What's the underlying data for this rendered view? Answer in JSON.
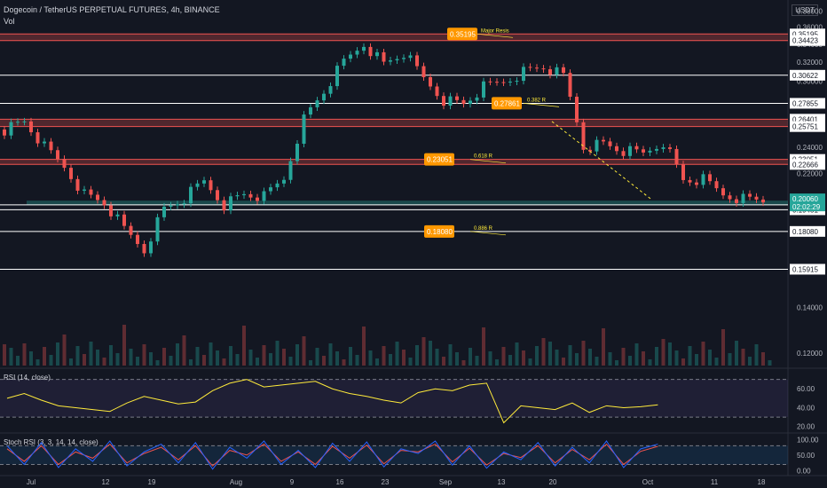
{
  "header": {
    "symbol": "Dogecoin / TetherUS PERPETUAL FUTURES, 4h, BINANCE",
    "volume_label": "Vol",
    "currency": "USDT"
  },
  "colors": {
    "background": "#131722",
    "candle_up": "#26a69a",
    "candle_down": "#ef5350",
    "level_line": "#ffffff",
    "resistance_line": "#ef5350",
    "support_zone": "#26a69a",
    "fib_tag": "#ff9800",
    "fib_text": "#ffeb3b",
    "rsi_line": "#ffeb3b",
    "stoch_k": "#2962ff",
    "stoch_d": "#ef5350",
    "current_price_tag": "#26a69a"
  },
  "chart_data": [
    {
      "type": "candlestick",
      "title": "Dogecoin / TetherUS PERPETUAL FUTURES, 4h, BINANCE",
      "x_labels": [
        "Jul",
        "12",
        "19",
        "Aug",
        "9",
        "16",
        "23",
        "Sep",
        "13",
        "20",
        "Oct",
        "11",
        "18"
      ],
      "y_scale": "log",
      "ylim": [
        0.115,
        0.39
      ],
      "y_tick_labels": [
        "0.38000",
        "0.36000",
        "0.34000",
        "0.32000",
        "0.30000",
        "0.28000",
        "0.26000",
        "0.24000",
        "0.22000",
        "0.20000",
        "0.18000",
        "0.16000",
        "0.14000",
        "0.12000"
      ],
      "y_ticks": [
        0.38,
        0.36,
        0.34,
        0.32,
        0.3,
        0.28,
        0.26,
        0.24,
        0.22,
        0.2,
        0.18,
        0.16,
        0.14,
        0.12
      ],
      "close_path": [
        [
          0,
          0.255
        ],
        [
          3,
          0.262
        ],
        [
          6,
          0.24
        ],
        [
          9,
          0.225
        ],
        [
          12,
          0.205
        ],
        [
          15,
          0.199
        ],
        [
          18,
          0.182
        ],
        [
          21,
          0.17
        ],
        [
          24,
          0.195
        ],
        [
          27,
          0.202
        ],
        [
          30,
          0.214
        ],
        [
          33,
          0.198
        ],
        [
          36,
          0.205
        ],
        [
          39,
          0.203
        ],
        [
          42,
          0.216
        ],
        [
          45,
          0.264
        ],
        [
          48,
          0.29
        ],
        [
          51,
          0.32
        ],
        [
          54,
          0.341
        ],
        [
          57,
          0.318
        ],
        [
          60,
          0.33
        ],
        [
          63,
          0.303
        ],
        [
          66,
          0.282
        ],
        [
          69,
          0.278
        ],
        [
          72,
          0.294
        ],
        [
          75,
          0.3
        ],
        [
          78,
          0.31
        ],
        [
          81,
          0.315
        ],
        [
          84,
          0.305
        ],
        [
          87,
          0.241
        ],
        [
          90,
          0.243
        ],
        [
          93,
          0.237
        ],
        [
          96,
          0.235
        ],
        [
          99,
          0.245
        ],
        [
          102,
          0.215
        ],
        [
          105,
          0.215
        ],
        [
          108,
          0.205
        ],
        [
          111,
          0.202
        ],
        [
          114,
          0.201
        ]
      ],
      "levels": [
        {
          "value": 0.35195,
          "label": "0.35195",
          "kind": "resistance"
        },
        {
          "value": 0.34423,
          "label": "0.34423",
          "kind": "resistance"
        },
        {
          "value": 0.30622,
          "label": "0.30622",
          "kind": "level"
        },
        {
          "value": 0.27855,
          "label": "0.27855",
          "kind": "level"
        },
        {
          "value": 0.26401,
          "label": "0.26401",
          "kind": "resistance"
        },
        {
          "value": 0.25751,
          "label": "0.25751",
          "kind": "resistance"
        },
        {
          "value": 0.23051,
          "label": "0.23051",
          "kind": "resistance"
        },
        {
          "value": 0.22666,
          "label": "0.22666",
          "kind": "resistance"
        },
        {
          "value": 0.19778,
          "label": "0.19778",
          "kind": "support"
        },
        {
          "value": 0.19451,
          "label": "0.19451",
          "kind": "level"
        },
        {
          "value": 0.1808,
          "label": "0.18080",
          "kind": "level"
        },
        {
          "value": 0.15915,
          "label": "0.15915",
          "kind": "level"
        }
      ],
      "current_price": {
        "value": 0.2006,
        "label": "0.20060",
        "countdown": "02:02:29"
      },
      "annotations": [
        {
          "price": 0.35195,
          "value": "0.35195",
          "note": "Major Resis"
        },
        {
          "price": 0.27861,
          "value": "0.27861",
          "note": "0.382 R"
        },
        {
          "price": 0.23051,
          "value": "0.23051",
          "note": "0.618 R"
        },
        {
          "price": 0.1808,
          "value": "0.18080",
          "note": "0.886 R"
        }
      ]
    },
    {
      "type": "line",
      "title": "RSI (14, close)",
      "ylim": [
        15,
        80
      ],
      "y_ticks": [
        60,
        40,
        20
      ],
      "y_tick_labels": [
        "60.00",
        "40.00",
        "20.00"
      ],
      "guides": [
        70,
        30
      ],
      "series": [
        {
          "name": "RSI",
          "values": [
            50,
            55,
            48,
            42,
            40,
            38,
            36,
            45,
            52,
            48,
            44,
            46,
            58,
            66,
            70,
            62,
            64,
            66,
            68,
            60,
            55,
            52,
            48,
            45,
            56,
            60,
            58,
            64,
            66,
            24,
            42,
            40,
            38,
            45,
            35,
            42,
            40,
            41,
            43
          ]
        }
      ]
    },
    {
      "type": "line",
      "title": "Stoch RSI (3, 3, 14, 14, close)",
      "ylim": [
        -10,
        115
      ],
      "y_ticks": [
        100,
        50,
        0
      ],
      "y_tick_labels": [
        "100.00",
        "50.00",
        "0.00"
      ],
      "guides": [
        80,
        20
      ],
      "series": [
        {
          "name": "K",
          "values": [
            80,
            20,
            90,
            10,
            70,
            30,
            95,
            15,
            60,
            85,
            25,
            90,
            5,
            75,
            40,
            95,
            20,
            65,
            10,
            88,
            30,
            92,
            12,
            70,
            55,
            95,
            18,
            80,
            8,
            60,
            35,
            90,
            15,
            75,
            25,
            95,
            10,
            70,
            85
          ]
        },
        {
          "name": "D",
          "values": [
            70,
            30,
            80,
            20,
            60,
            40,
            85,
            25,
            55,
            75,
            35,
            80,
            15,
            65,
            50,
            85,
            30,
            60,
            20,
            78,
            40,
            82,
            22,
            65,
            60,
            85,
            28,
            72,
            18,
            55,
            42,
            80,
            25,
            68,
            35,
            85,
            20,
            62,
            78
          ]
        }
      ]
    }
  ]
}
